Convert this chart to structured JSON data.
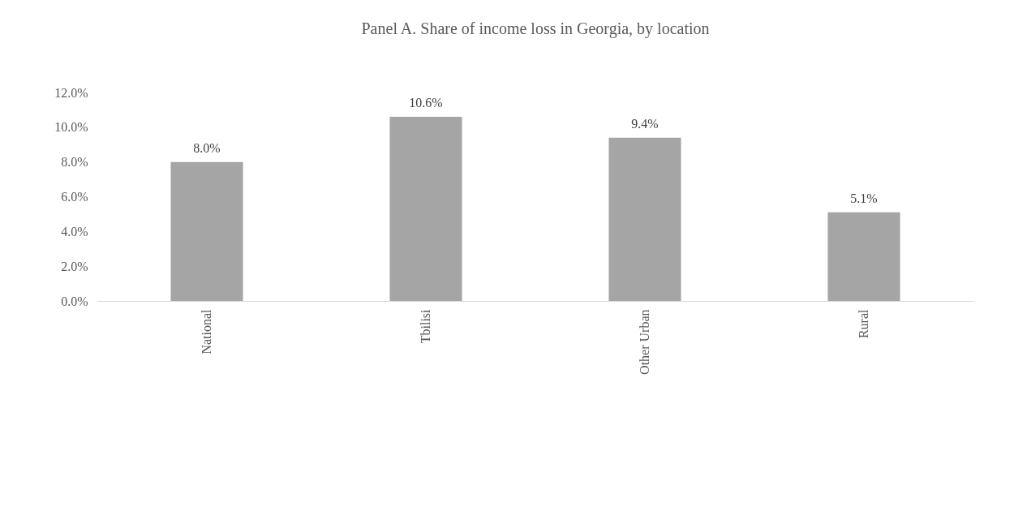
{
  "chart_data": {
    "type": "bar",
    "title": "Panel A. Share of income loss in Georgia, by location",
    "categories": [
      "National",
      "Tbilisi",
      "Other Urban",
      "Rural"
    ],
    "values": [
      8.0,
      10.6,
      9.4,
      5.1
    ],
    "color": "#a5a5a5",
    "value_labels": [
      "8.0%",
      "10.6%",
      "9.4%",
      "5.1%"
    ],
    "ylim": [
      0,
      12
    ],
    "yticks": [
      {
        "value": 0,
        "label": "0.0%"
      },
      {
        "value": 2,
        "label": "2.0%"
      },
      {
        "value": 4,
        "label": "4.0%"
      },
      {
        "value": 6,
        "label": "6.0%"
      },
      {
        "value": 8,
        "label": "8.0%"
      },
      {
        "value": 10,
        "label": "10.0%"
      },
      {
        "value": 12,
        "label": "12.0%"
      }
    ],
    "grid": false
  }
}
